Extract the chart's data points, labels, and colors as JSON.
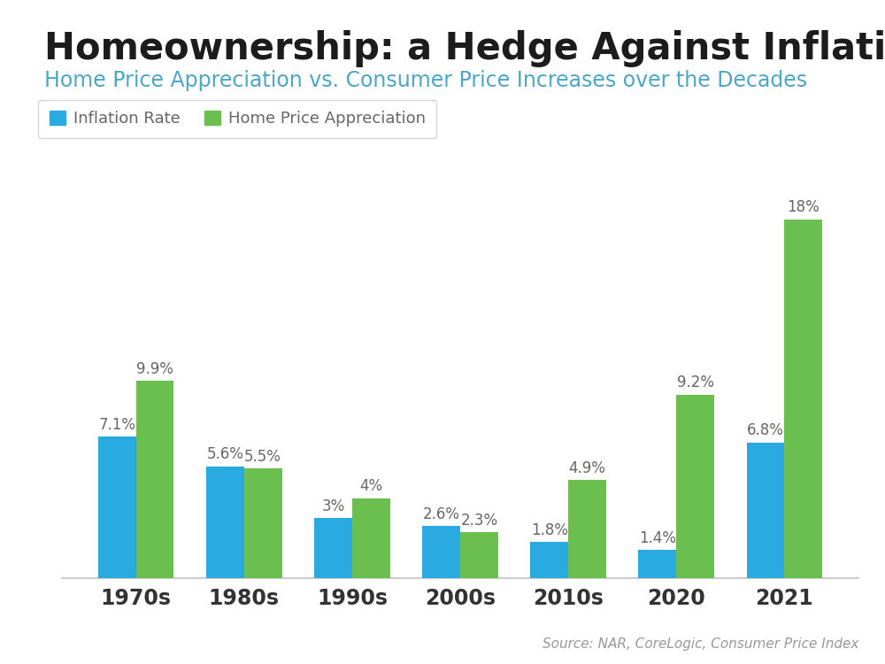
{
  "title": "Homeownership: a Hedge Against Inflation",
  "subtitle": "Home Price Appreciation vs. Consumer Price Increases over the Decades",
  "source": "Source: NAR, CoreLogic, Consumer Price Index",
  "categories": [
    "1970s",
    "1980s",
    "1990s",
    "2000s",
    "2010s",
    "2020",
    "2021"
  ],
  "inflation_rates": [
    7.1,
    5.6,
    3.0,
    2.6,
    1.8,
    1.4,
    6.8
  ],
  "home_price_appreciation": [
    9.9,
    5.5,
    4.0,
    2.3,
    4.9,
    9.2,
    18.0
  ],
  "inflation_labels": [
    "7.1%",
    "5.6%",
    "3%",
    "2.6%",
    "1.8%",
    "1.4%",
    "6.8%"
  ],
  "home_price_labels": [
    "9.9%",
    "5.5%",
    "4%",
    "2.3%",
    "4.9%",
    "9.2%",
    "18%"
  ],
  "bar_color_inflation": "#29ABE2",
  "bar_color_home": "#6BBF4E",
  "background_color": "#FFFFFF",
  "header_bar_color": "#29ABE2",
  "title_color": "#1C1C1C",
  "subtitle_color": "#4DA6C8",
  "label_color": "#666666",
  "source_color": "#999999",
  "legend_label_color": "#666666",
  "tick_color": "#333333",
  "grid_color": "#E0E8EE",
  "spine_color": "#CCCCCC",
  "ylim": [
    0,
    20
  ],
  "bar_width": 0.35,
  "title_fontsize": 30,
  "subtitle_fontsize": 17,
  "label_fontsize": 12,
  "tick_fontsize": 17,
  "legend_fontsize": 13,
  "source_fontsize": 11
}
